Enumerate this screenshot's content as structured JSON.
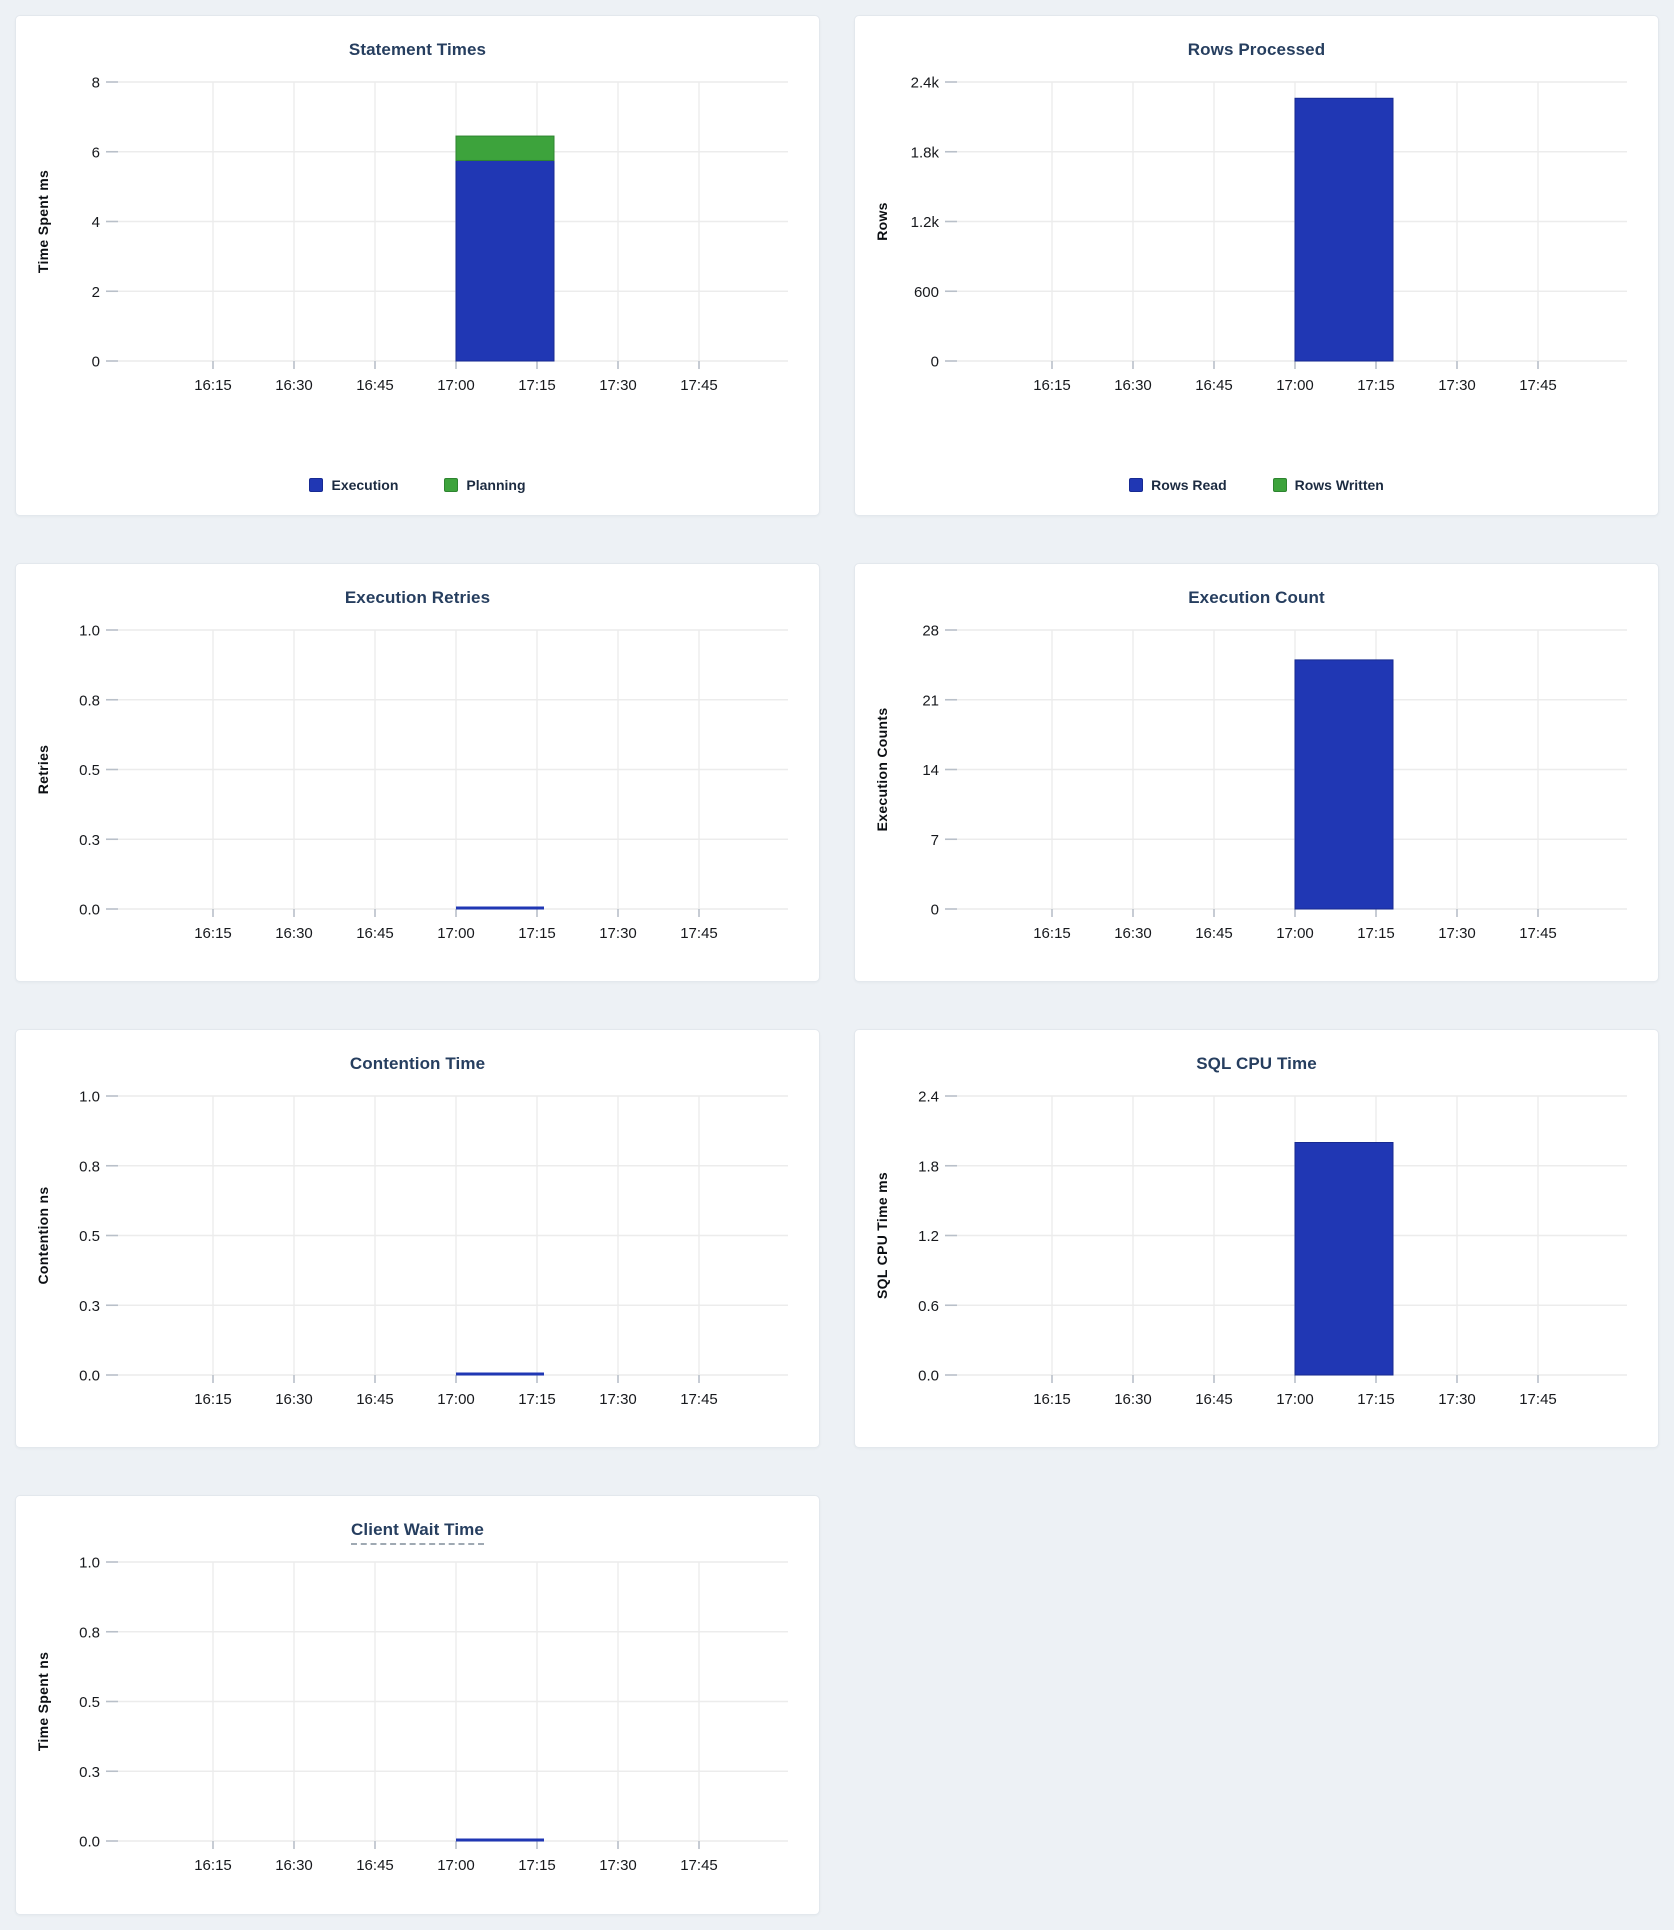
{
  "colors": {
    "blue": {
      "fill": "#2037B4",
      "stroke": "#172A92"
    },
    "green": {
      "fill": "#3DA33C",
      "stroke": "#2E8430"
    }
  },
  "chart_data": [
    {
      "type": "bar",
      "title": "Statement Times",
      "ylabel": "Time Spent ms",
      "ylim": [
        0,
        8
      ],
      "yticks": [
        "0",
        "2",
        "4",
        "6",
        "8"
      ],
      "xticks": [
        "16:15",
        "16:30",
        "16:45",
        "17:00",
        "17:15",
        "17:30",
        "17:45"
      ],
      "bucket_start": "17:00",
      "bucket_end": "17:17",
      "series": [
        {
          "name": "Execution",
          "color": "blue",
          "value": 5.75
        },
        {
          "name": "Planning",
          "color": "green",
          "value": 0.7
        }
      ],
      "legend": [
        {
          "label": "Execution",
          "color": "blue"
        },
        {
          "label": "Planning",
          "color": "green"
        }
      ]
    },
    {
      "type": "bar",
      "title": "Rows Processed",
      "ylabel": "Rows",
      "ylim": [
        0,
        2400
      ],
      "yticks": [
        "0",
        "600",
        "1.2k",
        "1.8k",
        "2.4k"
      ],
      "xticks": [
        "16:15",
        "16:30",
        "16:45",
        "17:00",
        "17:15",
        "17:30",
        "17:45"
      ],
      "bucket_start": "17:00",
      "bucket_end": "17:17",
      "series": [
        {
          "name": "Rows Read",
          "color": "blue",
          "value": 2260
        },
        {
          "name": "Rows Written",
          "color": "green",
          "value": 0
        }
      ],
      "legend": [
        {
          "label": "Rows Read",
          "color": "blue"
        },
        {
          "label": "Rows Written",
          "color": "green"
        }
      ]
    },
    {
      "type": "bar",
      "title": "Execution Retries",
      "ylabel": "Retries",
      "ylim": [
        0,
        1.0
      ],
      "yticks": [
        "0.0",
        "0.3",
        "0.5",
        "0.8",
        "1.0"
      ],
      "xticks": [
        "16:15",
        "16:30",
        "16:45",
        "17:00",
        "17:15",
        "17:30",
        "17:45"
      ],
      "bucket_start": "17:00",
      "bucket_end": "17:17",
      "series": [
        {
          "name": "",
          "color": "blue",
          "value": 0
        }
      ]
    },
    {
      "type": "bar",
      "title": "Execution Count",
      "ylabel": "Execution Counts",
      "ylim": [
        0,
        28
      ],
      "yticks": [
        "0",
        "7",
        "14",
        "21",
        "28"
      ],
      "xticks": [
        "16:15",
        "16:30",
        "16:45",
        "17:00",
        "17:15",
        "17:30",
        "17:45"
      ],
      "bucket_start": "17:00",
      "bucket_end": "17:17",
      "series": [
        {
          "name": "",
          "color": "blue",
          "value": 25
        }
      ]
    },
    {
      "type": "bar",
      "title": "Contention Time",
      "ylabel": "Contention ns",
      "ylim": [
        0,
        1.0
      ],
      "yticks": [
        "0.0",
        "0.3",
        "0.5",
        "0.8",
        "1.0"
      ],
      "xticks": [
        "16:15",
        "16:30",
        "16:45",
        "17:00",
        "17:15",
        "17:30",
        "17:45"
      ],
      "bucket_start": "17:00",
      "bucket_end": "17:17",
      "series": [
        {
          "name": "",
          "color": "blue",
          "value": 0
        }
      ]
    },
    {
      "type": "bar",
      "title": "SQL CPU Time",
      "ylabel": "SQL CPU Time ms",
      "ylim": [
        0,
        2.4
      ],
      "yticks": [
        "0.0",
        "0.6",
        "1.2",
        "1.8",
        "2.4"
      ],
      "xticks": [
        "16:15",
        "16:30",
        "16:45",
        "17:00",
        "17:15",
        "17:30",
        "17:45"
      ],
      "bucket_start": "17:00",
      "bucket_end": "17:17",
      "series": [
        {
          "name": "",
          "color": "blue",
          "value": 2.0
        }
      ]
    },
    {
      "type": "bar",
      "title": "Client Wait Time",
      "title_underlined": true,
      "ylabel": "Time Spent ns",
      "ylim": [
        0,
        1.0
      ],
      "yticks": [
        "0.0",
        "0.3",
        "0.5",
        "0.8",
        "1.0"
      ],
      "xticks": [
        "16:15",
        "16:30",
        "16:45",
        "17:00",
        "17:15",
        "17:30",
        "17:45"
      ],
      "bucket_start": "17:00",
      "bucket_end": "17:17",
      "series": [
        {
          "name": "",
          "color": "blue",
          "value": 0
        }
      ]
    }
  ]
}
